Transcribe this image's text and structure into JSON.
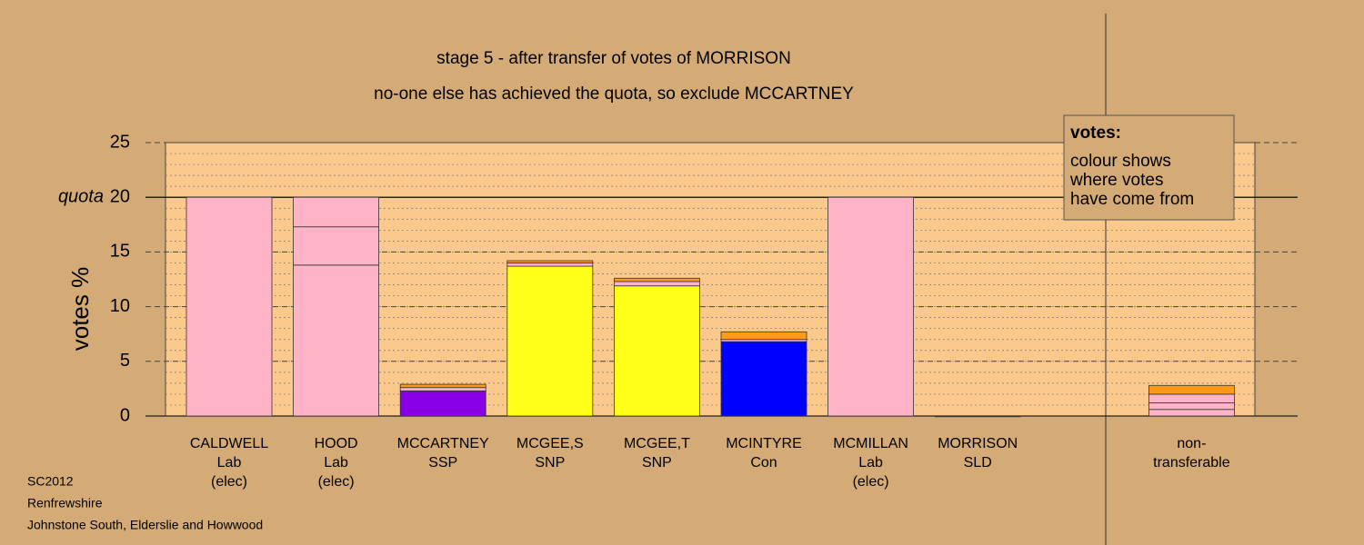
{
  "chart_data": {
    "type": "stacked-bar",
    "title": "stage 5 - after transfer of votes of MORRISON",
    "subtitle": "no-one else has achieved the quota, so exclude MCCARTNEY",
    "y_label": "votes %",
    "categories": [
      [
        "CALDWELL",
        "Lab",
        "(elec)"
      ],
      [
        "HOOD",
        "Lab",
        "(elec)"
      ],
      [
        "MCCARTNEY",
        "SSP"
      ],
      [
        "MCGEE,S",
        "SNP"
      ],
      [
        "MCGEE,T",
        "SNP"
      ],
      [
        "MCINTYRE",
        "Con"
      ],
      [
        "MCMILLAN",
        "Lab",
        "(elec)"
      ],
      [
        "MORRISON",
        "SLD"
      ],
      null,
      [
        "non-",
        "transferable"
      ]
    ],
    "segments": [
      [
        20
      ],
      [
        13.8,
        3.5,
        2.7
      ],
      [
        2.3,
        0.3,
        0.3
      ],
      [
        13.7,
        0.3,
        0.2
      ],
      [
        11.9,
        0.4,
        0.3
      ],
      [
        6.8,
        0.2,
        0.7
      ],
      [
        20
      ],
      [
        0
      ],
      null,
      [
        0.6,
        0.6,
        0.8,
        0.8
      ]
    ],
    "segment_colors": [
      [
        "#ffb3c6"
      ],
      [
        "#ffb3c6",
        "#ffb3c6",
        "#ffb3c6"
      ],
      [
        "#8a00e6",
        "#ffb3c6",
        "#ff9a1a"
      ],
      [
        "#ffff1a",
        "#ffb3c6",
        "#ff9a1a"
      ],
      [
        "#ffff1a",
        "#ffb3c6",
        "#ff9a1a"
      ],
      [
        "#0000ff",
        "#ffb3c6",
        "#ff9a1a"
      ],
      [
        "#ffb3c6"
      ],
      [
        "#ff9a1a"
      ],
      null,
      [
        "#ffb3c6",
        "#ffb3c6",
        "#ffb3c6",
        "#ff9a1a"
      ]
    ],
    "ylim": [
      0,
      25
    ],
    "yticks": [
      0,
      5,
      10,
      15,
      20,
      25
    ],
    "quota": {
      "value": 20,
      "label": "quota"
    },
    "minor_grid_step": 1,
    "legend": {
      "title": "votes:",
      "lines": [
        "colour shows",
        "where votes",
        "have come from"
      ]
    },
    "footer": [
      "SC2012",
      "Renfrewshire",
      "Johnstone South, Elderslie and Howwood"
    ]
  }
}
